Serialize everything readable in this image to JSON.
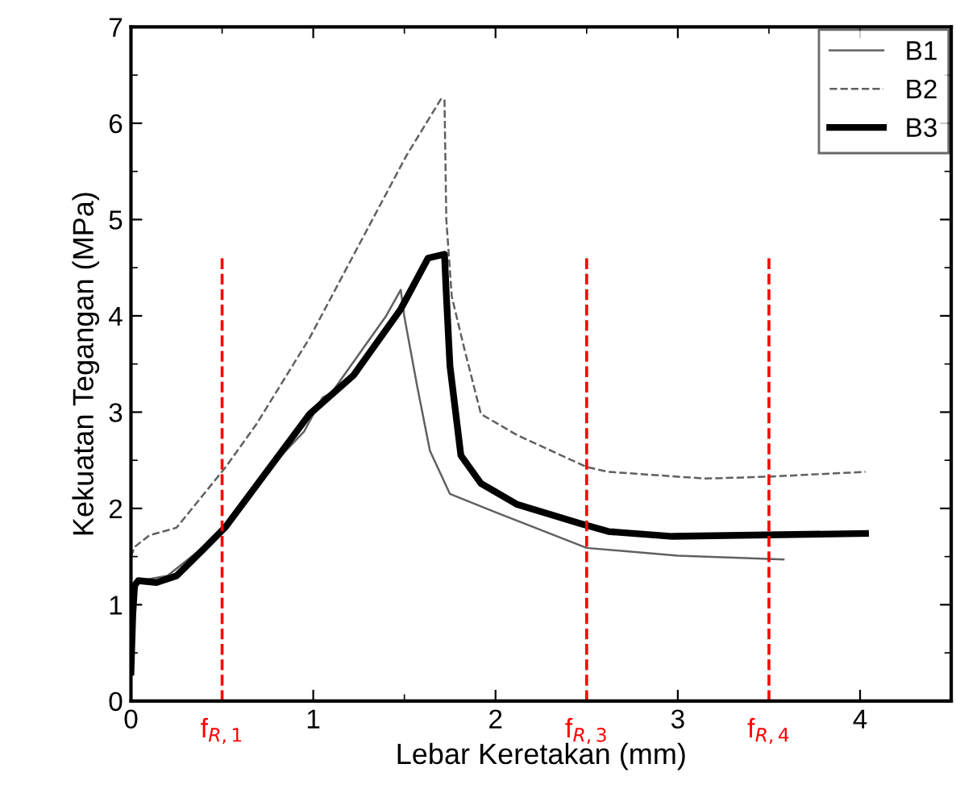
{
  "chart_data": {
    "type": "line",
    "xlabel": "Lebar Keretakan (mm)",
    "ylabel": "Kekuatan Tegangan (MPa)",
    "xlim": [
      0,
      4.5
    ],
    "ylim": [
      0,
      7
    ],
    "xticks": [
      0,
      1,
      2,
      3,
      4
    ],
    "yticks": [
      0,
      1,
      2,
      3,
      4,
      5,
      6,
      7
    ],
    "grid": false,
    "legend": "top right",
    "series": [
      {
        "name": "B1",
        "color": "#606060",
        "line_style": "solid",
        "x": [
          0,
          0.01,
          0.02,
          0.05,
          0.2,
          0.3,
          0.53,
          0.6,
          0.8,
          0.95,
          1.05,
          1.1,
          1.25,
          1.4,
          1.48,
          1.5,
          1.57,
          1.64,
          1.75,
          2.0,
          2.5,
          3.0,
          3.58
        ],
        "values": [
          0.3,
          0.9,
          1.2,
          1.25,
          1.3,
          1.45,
          1.8,
          2.0,
          2.5,
          2.8,
          3.15,
          3.2,
          3.6,
          4.0,
          4.27,
          3.99,
          3.27,
          2.6,
          2.15,
          1.96,
          1.59,
          1.51,
          1.47
        ]
      },
      {
        "name": "B2",
        "color": "#606060",
        "line_style": "dashed",
        "x": [
          0,
          0.02,
          0.1,
          0.25,
          0.52,
          0.69,
          0.98,
          1.19,
          1.51,
          1.7,
          1.72,
          1.73,
          1.76,
          1.83,
          1.92,
          2.12,
          2.5,
          2.62,
          3.15,
          3.5,
          4.03
        ],
        "values": [
          1.5,
          1.6,
          1.72,
          1.8,
          2.43,
          2.88,
          3.77,
          4.52,
          5.66,
          6.25,
          6.25,
          5.0,
          4.2,
          3.65,
          2.98,
          2.76,
          2.43,
          2.38,
          2.31,
          2.33,
          2.38
        ]
      },
      {
        "name": "B3",
        "color": "#000000",
        "line_style": "solid",
        "x": [
          0,
          0.01,
          0.02,
          0.04,
          0.14,
          0.25,
          0.4,
          0.52,
          0.98,
          1.22,
          1.48,
          1.63,
          1.72,
          1.73,
          1.75,
          1.81,
          1.92,
          2.12,
          2.47,
          2.62,
          2.97,
          4.03
        ],
        "values": [
          0.3,
          0.9,
          1.2,
          1.25,
          1.23,
          1.3,
          1.58,
          1.81,
          2.98,
          3.38,
          4.07,
          4.6,
          4.64,
          4.22,
          3.48,
          2.55,
          2.26,
          2.04,
          1.84,
          1.76,
          1.71,
          1.74
        ]
      }
    ],
    "ref_lines": [
      {
        "axis": "x",
        "value": 0.5,
        "label": "f$_{R,1}$",
        "color": "#ff0000",
        "line_style": "dashed"
      },
      {
        "axis": "x",
        "value": 2.5,
        "label": "f$_{R,3}$",
        "color": "#ff0000",
        "line_style": "dashed"
      },
      {
        "axis": "x",
        "value": 3.5,
        "label": "f$_{R,4}$",
        "color": "#ff0000",
        "line_style": "dashed"
      }
    ]
  }
}
